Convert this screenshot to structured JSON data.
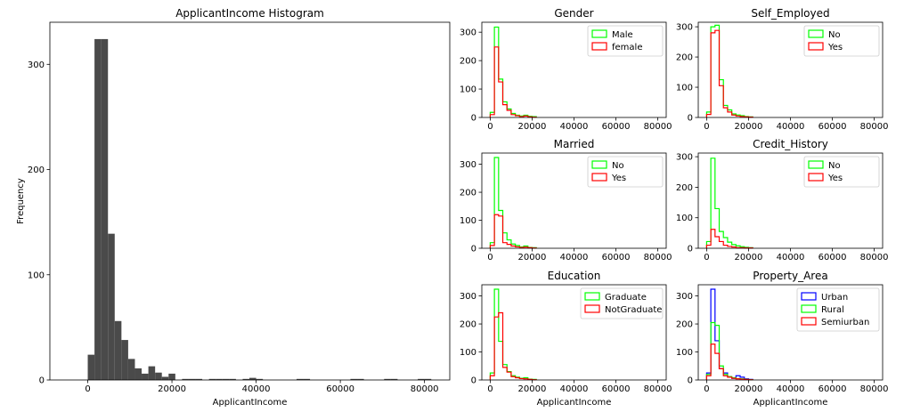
{
  "chart_data": [
    {
      "type": "bar",
      "title": "ApplicantIncome Histogram",
      "xlabel": "ApplicantIncome",
      "ylabel": "Frequency",
      "xlim": [
        -9000,
        86000
      ],
      "ylim": [
        0,
        340
      ],
      "xticks": [
        0,
        20000,
        40000,
        60000,
        80000
      ],
      "yticks": [
        0,
        100,
        200,
        300
      ],
      "bin_width": 1600,
      "fill": "#4a4a4a",
      "bins": [
        {
          "x": 0,
          "y": 24
        },
        {
          "x": 1600,
          "y": 324
        },
        {
          "x": 3200,
          "y": 324
        },
        {
          "x": 4800,
          "y": 139
        },
        {
          "x": 6400,
          "y": 56
        },
        {
          "x": 8000,
          "y": 38
        },
        {
          "x": 9600,
          "y": 20
        },
        {
          "x": 11200,
          "y": 11
        },
        {
          "x": 12800,
          "y": 6
        },
        {
          "x": 14400,
          "y": 13
        },
        {
          "x": 16000,
          "y": 7
        },
        {
          "x": 17600,
          "y": 3
        },
        {
          "x": 19200,
          "y": 6
        },
        {
          "x": 20800,
          "y": 0
        },
        {
          "x": 22400,
          "y": 1
        },
        {
          "x": 24000,
          "y": 1
        },
        {
          "x": 25600,
          "y": 1
        },
        {
          "x": 28800,
          "y": 1
        },
        {
          "x": 30400,
          "y": 1
        },
        {
          "x": 32000,
          "y": 1
        },
        {
          "x": 33600,
          "y": 1
        },
        {
          "x": 36800,
          "y": 1
        },
        {
          "x": 38400,
          "y": 2
        },
        {
          "x": 40000,
          "y": 1
        },
        {
          "x": 49600,
          "y": 1
        },
        {
          "x": 51200,
          "y": 1
        },
        {
          "x": 62400,
          "y": 1
        },
        {
          "x": 64000,
          "y": 1
        },
        {
          "x": 70400,
          "y": 1
        },
        {
          "x": 72000,
          "y": 1
        },
        {
          "x": 78400,
          "y": 1
        },
        {
          "x": 80000,
          "y": 1
        }
      ]
    },
    {
      "type": "line",
      "title": "Gender",
      "xlim": [
        -4000,
        84000
      ],
      "ylim": [
        0,
        335
      ],
      "xticks": [
        0,
        20000,
        40000,
        60000,
        80000
      ],
      "yticks": [
        0,
        100,
        200,
        300
      ],
      "legend_position": "top-right",
      "bin_width": 2000,
      "series": [
        {
          "name": "Male",
          "color": "#00ff00",
          "x": [
            0,
            2000,
            4000,
            6000,
            8000,
            10000,
            12000,
            14000,
            16000,
            18000,
            20000
          ],
          "values": [
            18,
            318,
            135,
            55,
            30,
            14,
            8,
            5,
            8,
            4,
            3
          ]
        },
        {
          "name": "female",
          "color": "#ff0000",
          "x": [
            0,
            2000,
            4000,
            6000,
            8000,
            10000,
            12000,
            14000,
            16000,
            18000,
            20000
          ],
          "values": [
            10,
            248,
            125,
            45,
            25,
            10,
            6,
            3,
            5,
            2,
            1
          ]
        }
      ]
    },
    {
      "type": "line",
      "title": "Self_Employed",
      "xlim": [
        -4000,
        84000
      ],
      "ylim": [
        0,
        315
      ],
      "xticks": [
        0,
        20000,
        40000,
        60000,
        80000
      ],
      "yticks": [
        0,
        100,
        200,
        300
      ],
      "legend_position": "top-right",
      "bin_width": 2000,
      "series": [
        {
          "name": "No",
          "color": "#00ff00",
          "x": [
            0,
            2000,
            4000,
            6000,
            8000,
            10000,
            12000,
            14000,
            16000,
            18000,
            20000
          ],
          "values": [
            18,
            300,
            305,
            125,
            40,
            25,
            12,
            8,
            6,
            3,
            2
          ]
        },
        {
          "name": "Yes",
          "color": "#ff0000",
          "x": [
            0,
            2000,
            4000,
            6000,
            8000,
            10000,
            12000,
            14000,
            16000,
            18000,
            20000
          ],
          "values": [
            10,
            280,
            288,
            105,
            32,
            18,
            8,
            5,
            3,
            2,
            1
          ]
        }
      ]
    },
    {
      "type": "line",
      "title": "Married",
      "xlim": [
        -4000,
        84000
      ],
      "ylim": [
        0,
        340
      ],
      "xticks": [
        0,
        20000,
        40000,
        60000,
        80000
      ],
      "yticks": [
        0,
        100,
        200,
        300
      ],
      "legend_position": "top-right",
      "bin_width": 2000,
      "series": [
        {
          "name": "No",
          "color": "#00ff00",
          "x": [
            0,
            2000,
            4000,
            6000,
            8000,
            10000,
            12000,
            14000,
            16000,
            18000,
            20000
          ],
          "values": [
            20,
            324,
            135,
            55,
            30,
            15,
            10,
            5,
            8,
            3,
            2
          ]
        },
        {
          "name": "Yes",
          "color": "#ff0000",
          "x": [
            0,
            2000,
            4000,
            6000,
            8000,
            10000,
            12000,
            14000,
            16000,
            18000,
            20000
          ],
          "values": [
            10,
            120,
            115,
            20,
            14,
            8,
            5,
            3,
            4,
            2,
            1
          ]
        }
      ]
    },
    {
      "type": "line",
      "title": "Credit_History",
      "xlim": [
        -4000,
        84000
      ],
      "ylim": [
        0,
        312
      ],
      "xticks": [
        0,
        20000,
        40000,
        60000,
        80000
      ],
      "yticks": [
        0,
        100,
        200,
        300
      ],
      "legend_position": "top-right",
      "bin_width": 2000,
      "series": [
        {
          "name": "No",
          "color": "#00ff00",
          "x": [
            0,
            2000,
            4000,
            6000,
            8000,
            10000,
            12000,
            14000,
            16000,
            18000,
            20000
          ],
          "values": [
            22,
            295,
            130,
            55,
            35,
            20,
            12,
            8,
            5,
            3,
            2
          ]
        },
        {
          "name": "Yes",
          "color": "#ff0000",
          "x": [
            0,
            2000,
            4000,
            6000,
            8000,
            10000,
            12000,
            14000,
            16000,
            18000,
            20000
          ],
          "values": [
            10,
            62,
            38,
            22,
            10,
            6,
            4,
            2,
            2,
            1,
            1
          ]
        }
      ]
    },
    {
      "type": "line",
      "title": "Education",
      "xlabel": "ApplicantIncome",
      "xlim": [
        -4000,
        84000
      ],
      "ylim": [
        0,
        340
      ],
      "xticks": [
        0,
        20000,
        40000,
        60000,
        80000
      ],
      "yticks": [
        0,
        100,
        200,
        300
      ],
      "legend_position": "top-right",
      "bin_width": 2000,
      "series": [
        {
          "name": "Graduate",
          "color": "#00ff00",
          "x": [
            0,
            2000,
            4000,
            6000,
            8000,
            10000,
            12000,
            14000,
            16000,
            18000,
            20000
          ],
          "values": [
            25,
            324,
            138,
            55,
            30,
            15,
            10,
            6,
            8,
            3,
            2
          ]
        },
        {
          "name": "NotGraduate",
          "color": "#ff0000",
          "x": [
            0,
            2000,
            4000,
            6000,
            8000,
            10000,
            12000,
            14000,
            16000,
            18000,
            20000
          ],
          "values": [
            15,
            225,
            240,
            45,
            28,
            12,
            8,
            5,
            4,
            2,
            1
          ]
        }
      ]
    },
    {
      "type": "line",
      "title": "Property_Area",
      "xlabel": "ApplicantIncome",
      "xlim": [
        -4000,
        84000
      ],
      "ylim": [
        0,
        340
      ],
      "xticks": [
        0,
        20000,
        40000,
        60000,
        80000
      ],
      "yticks": [
        0,
        100,
        200,
        300
      ],
      "legend_position": "top-right",
      "bin_width": 2000,
      "series": [
        {
          "name": "Urban",
          "color": "#0000ff",
          "x": [
            0,
            2000,
            4000,
            6000,
            8000,
            10000,
            12000,
            14000,
            16000,
            18000,
            20000
          ],
          "values": [
            25,
            324,
            140,
            40,
            25,
            10,
            6,
            15,
            10,
            4,
            2
          ]
        },
        {
          "name": "Rural",
          "color": "#00ff00",
          "x": [
            0,
            2000,
            4000,
            6000,
            8000,
            10000,
            12000,
            14000,
            16000,
            18000,
            20000
          ],
          "values": [
            20,
            205,
            195,
            50,
            20,
            12,
            8,
            5,
            4,
            2,
            1
          ]
        },
        {
          "name": "Semiurban",
          "color": "#ff0000",
          "x": [
            0,
            2000,
            4000,
            6000,
            8000,
            10000,
            12000,
            14000,
            16000,
            18000,
            20000
          ],
          "values": [
            15,
            128,
            95,
            40,
            15,
            10,
            6,
            4,
            3,
            2,
            1
          ]
        }
      ]
    }
  ]
}
